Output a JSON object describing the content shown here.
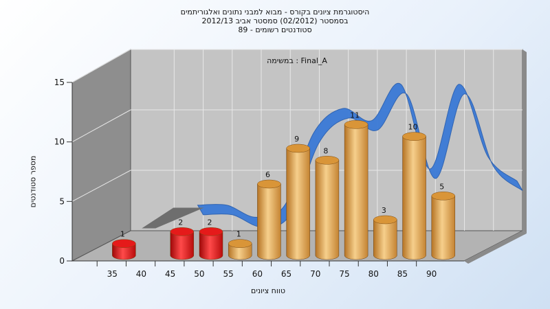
{
  "chart_data": {
    "type": "bar",
    "title_lines": [
      "היסטוגרמת ציונים בקורס - מבוא למבני נתונים ואלגוריתמים",
      "בסמסטר  (02/2012)  סמסטר אביב 2012/13",
      "סטודנטים רשומים - 89"
    ],
    "inner_label": "במשימה : Final_A",
    "xlabel": "טווח ציונים",
    "ylabel": "מספר סטודנטים",
    "x_ticks": [
      "35",
      "40",
      "45",
      "50",
      "55",
      "60",
      "65",
      "70",
      "75",
      "80",
      "85",
      "90"
    ],
    "y_ticks": [
      "0",
      "5",
      "10",
      "15"
    ],
    "ylim": [
      0,
      15
    ],
    "bars": [
      {
        "x": 37.5,
        "value": 1,
        "color": "#e01414"
      },
      {
        "x": 47.5,
        "value": 2,
        "color": "#e01414"
      },
      {
        "x": 52.5,
        "value": 2,
        "color": "#e01414"
      },
      {
        "x": 57.5,
        "value": 1,
        "color": "#e2a24a"
      },
      {
        "x": 62.5,
        "value": 6,
        "color": "#e2a24a"
      },
      {
        "x": 67.5,
        "value": 9,
        "color": "#e2a24a"
      },
      {
        "x": 72.5,
        "value": 8,
        "color": "#e2a24a"
      },
      {
        "x": 77.5,
        "value": 11,
        "color": "#e2a24a"
      },
      {
        "x": 82.5,
        "value": 3,
        "color": "#e2a24a"
      },
      {
        "x": 87.5,
        "value": 10,
        "color": "#e2a24a"
      },
      {
        "x": 92.5,
        "value": 5,
        "color": "#e2a24a"
      }
    ],
    "trend": {
      "values_x": [
        42.5,
        47.5,
        52.5,
        57.5,
        62.5,
        67.5,
        72.5,
        77.5,
        82.5,
        87.5,
        92.5,
        97.5
      ],
      "values": [
        2,
        2,
        1,
        2,
        8,
        10,
        9,
        12,
        5,
        12,
        6,
        4
      ],
      "colors": {
        "band": "#3a7ad6",
        "band_dark": "#2a5fb0",
        "grey": "#6e6e6e"
      }
    },
    "grid": true,
    "colors": {
      "wall_back": "#c4c4c4",
      "wall_left": "#8e8e8e",
      "floor": "#b3b3b3"
    }
  }
}
